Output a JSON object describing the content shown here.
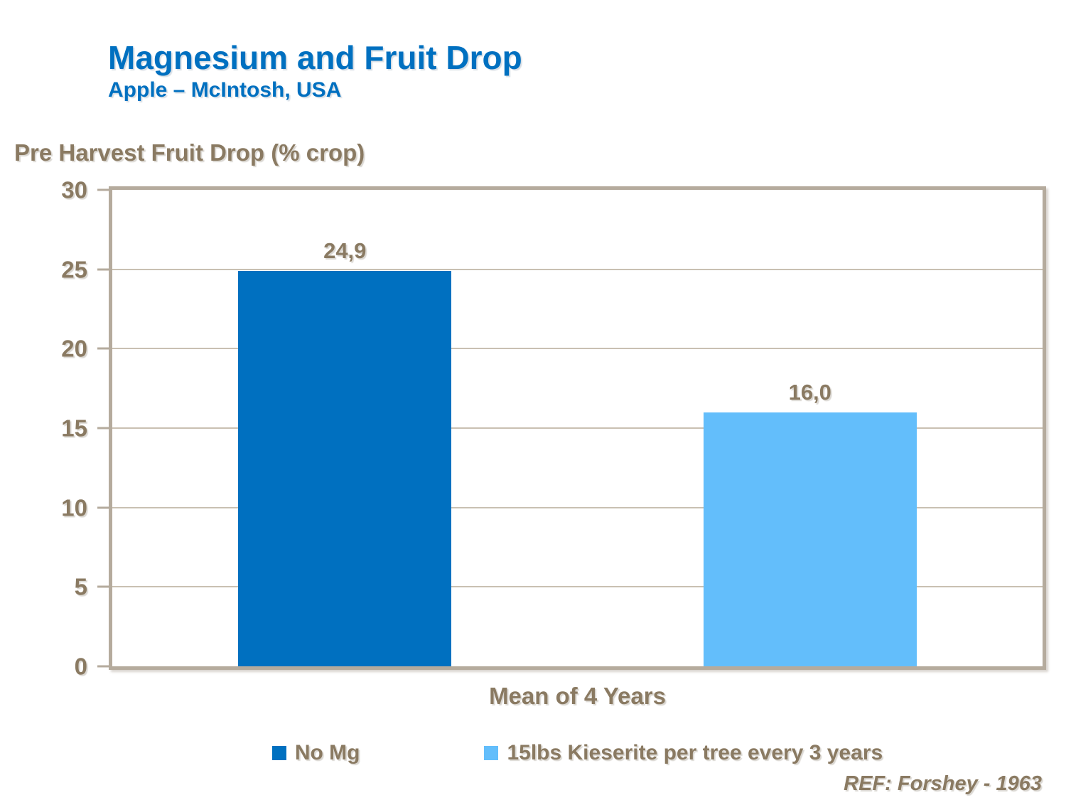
{
  "header": {
    "title": "Magnesium and Fruit Drop",
    "subtitle": "Apple – McIntosh, USA"
  },
  "footer": {
    "reference": "REF: Forshey - 1963"
  },
  "colors": {
    "title_blue": "#0070C0",
    "text_brown": "#8A7A62",
    "frame": "#B5AB9D",
    "gridline": "#C9C0B2",
    "series1": "#0070C0",
    "series2": "#63BEFB"
  },
  "chart_data": {
    "type": "bar",
    "ylabel": "Pre Harvest Fruit Drop (% crop)",
    "xlabel": "Mean of 4 Years",
    "categories": [
      "Mean of 4 Years"
    ],
    "series": [
      {
        "name": "No Mg",
        "values": [
          24.9
        ],
        "value_labels": [
          "24,9"
        ],
        "color": "#0070C0"
      },
      {
        "name": "15lbs Kieserite per tree every 3 years",
        "values": [
          16.0
        ],
        "value_labels": [
          "16,0"
        ],
        "color": "#63BEFB"
      }
    ],
    "ylim": [
      0,
      30
    ],
    "yticks": [
      0,
      5,
      10,
      15,
      20,
      25,
      30
    ],
    "grid": true,
    "legend_position": "bottom"
  }
}
